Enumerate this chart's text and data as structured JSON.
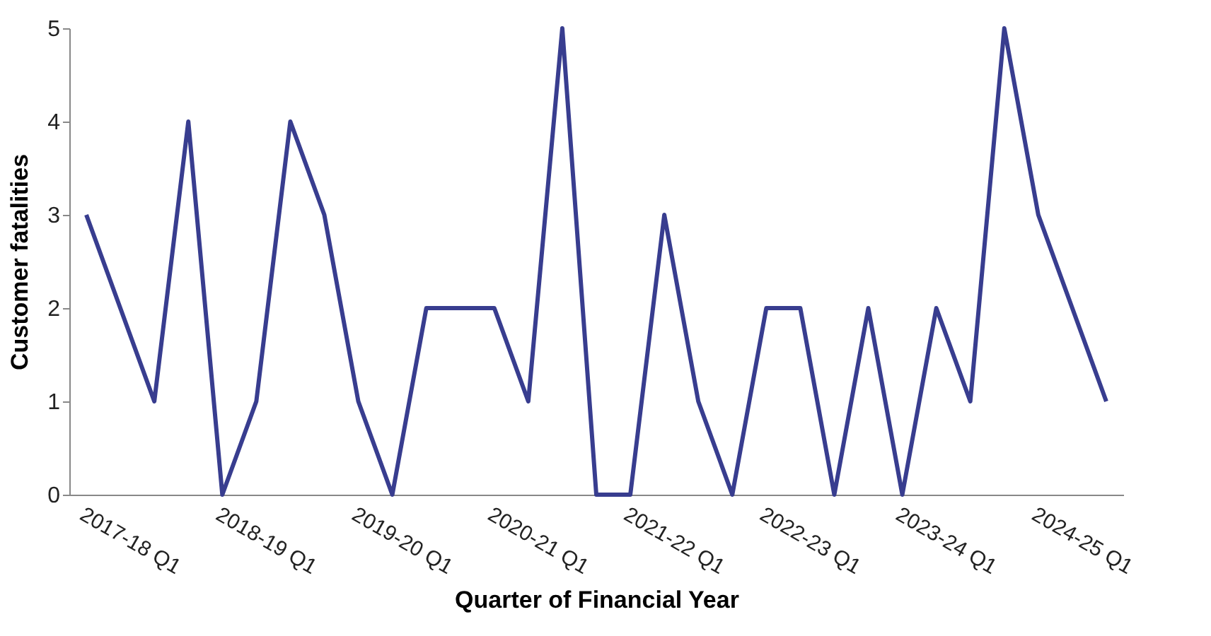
{
  "chart_data": {
    "type": "line",
    "xlabel": "Quarter of Financial Year",
    "ylabel": "Customer fatalities",
    "categories": [
      "2017-18 Q1",
      null,
      null,
      null,
      "2018-19 Q1",
      null,
      null,
      null,
      "2019-20 Q1",
      null,
      null,
      null,
      "2020-21 Q1",
      null,
      null,
      null,
      "2021-22 Q1",
      null,
      null,
      null,
      "2022-23 Q1",
      null,
      null,
      null,
      "2023-24 Q1",
      null,
      null,
      null,
      "2024-25 Q1",
      null,
      null
    ],
    "series": [
      {
        "color": "#383d8f",
        "values": [
          3,
          2,
          1,
          4,
          0,
          1,
          4,
          3,
          1,
          0,
          2,
          2,
          2,
          1,
          5,
          0,
          0,
          3,
          1,
          0,
          2,
          2,
          0,
          2,
          0,
          2,
          1,
          5,
          3,
          2,
          1
        ]
      }
    ],
    "ylim": [
      0,
      5
    ],
    "yticks": [
      0,
      1,
      2,
      3,
      4,
      5
    ],
    "grid": false,
    "marker": "none",
    "line_style": "solid"
  }
}
